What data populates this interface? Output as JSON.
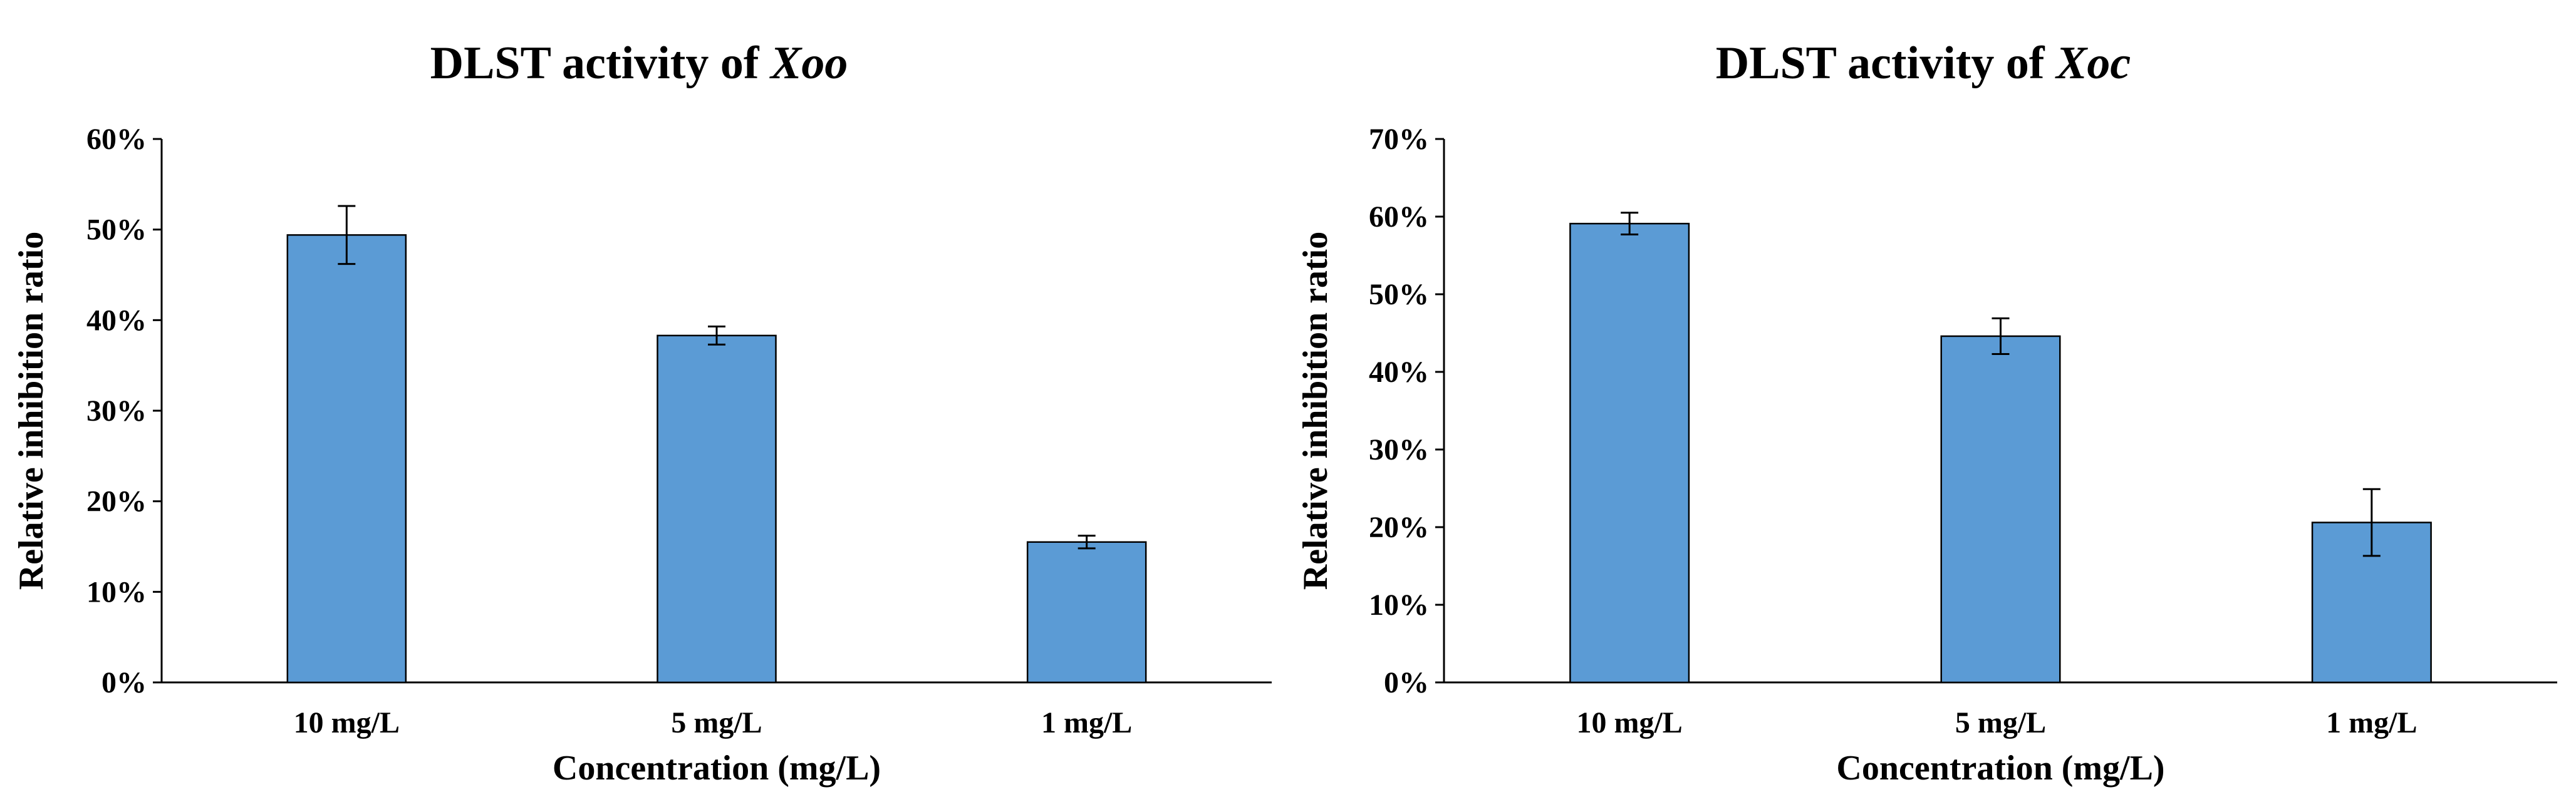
{
  "chart_data": [
    {
      "type": "bar",
      "title_prefix": "DLST activity of ",
      "title_italic": "Xoo",
      "xlabel": "Concentration (mg/L)",
      "ylabel": "Relative inhibition ratio",
      "categories": [
        "10 mg/L",
        "5 mg/L",
        "1 mg/L"
      ],
      "values": [
        49.4,
        38.3,
        15.5
      ],
      "errors": [
        3.2,
        1.0,
        0.7
      ],
      "ylim": [
        0,
        60
      ],
      "yticks": [
        0,
        10,
        20,
        30,
        40,
        50,
        60
      ],
      "ytick_labels": [
        "0%",
        "10%",
        "20%",
        "30%",
        "40%",
        "50%",
        "60%"
      ],
      "bar_color": "#5B9BD5"
    },
    {
      "type": "bar",
      "title_prefix": "DLST activity of ",
      "title_italic": "Xoc",
      "xlabel": "Concentration (mg/L)",
      "ylabel": "Relative inhibition ratio",
      "categories": [
        "10 mg/L",
        "5 mg/L",
        "1 mg/L"
      ],
      "values": [
        59.1,
        44.6,
        20.6
      ],
      "errors": [
        1.4,
        2.3,
        4.3
      ],
      "ylim": [
        0,
        70
      ],
      "yticks": [
        0,
        10,
        20,
        30,
        40,
        50,
        60,
        70
      ],
      "ytick_labels": [
        "0%",
        "10%",
        "20%",
        "30%",
        "40%",
        "50%",
        "60%",
        "70%"
      ],
      "bar_color": "#5B9BD5"
    }
  ]
}
